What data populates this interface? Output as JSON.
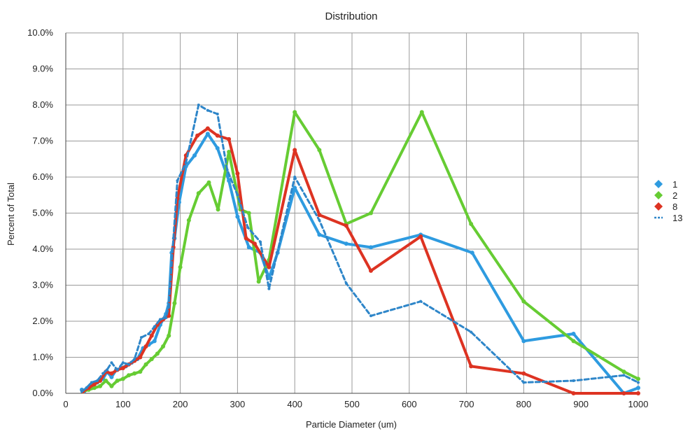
{
  "chart_data": {
    "type": "line",
    "title": "Distribution",
    "xlabel": "Particle Diameter (um)",
    "ylabel": "Percent of Total",
    "xlim": [
      0,
      1000
    ],
    "ylim": [
      0,
      10
    ],
    "x_ticks": [
      0,
      100,
      200,
      300,
      400,
      500,
      600,
      700,
      800,
      900,
      1000
    ],
    "y_ticks": [
      "0.0%",
      "1.0%",
      "2.0%",
      "3.0%",
      "4.0%",
      "5.0%",
      "6.0%",
      "7.0%",
      "8.0%",
      "9.0%",
      "10.0%"
    ],
    "y_tick_values": [
      0,
      1,
      2,
      3,
      4,
      5,
      6,
      7,
      8,
      9,
      10
    ],
    "grid": true,
    "legend_position": "right",
    "series": [
      {
        "name": "1",
        "color": "#2e9be0",
        "dash": false,
        "points": [
          [
            28,
            0.1
          ],
          [
            32,
            0.05
          ],
          [
            38,
            0.15
          ],
          [
            45,
            0.25
          ],
          [
            55,
            0.3
          ],
          [
            65,
            0.4
          ],
          [
            72,
            0.6
          ],
          [
            80,
            0.45
          ],
          [
            88,
            0.65
          ],
          [
            97,
            0.7
          ],
          [
            105,
            0.75
          ],
          [
            115,
            0.85
          ],
          [
            125,
            0.95
          ],
          [
            135,
            1.25
          ],
          [
            145,
            1.35
          ],
          [
            155,
            1.45
          ],
          [
            165,
            1.9
          ],
          [
            175,
            2.2
          ],
          [
            180,
            2.5
          ],
          [
            185,
            3.9
          ],
          [
            190,
            4.3
          ],
          [
            198,
            5.3
          ],
          [
            210,
            6.3
          ],
          [
            225,
            6.6
          ],
          [
            248,
            7.2
          ],
          [
            265,
            6.8
          ],
          [
            285,
            5.9
          ],
          [
            300,
            4.9
          ],
          [
            320,
            4.05
          ],
          [
            340,
            3.9
          ],
          [
            355,
            3.2
          ],
          [
            370,
            3.9
          ],
          [
            400,
            5.7
          ],
          [
            443,
            4.4
          ],
          [
            490,
            4.15
          ],
          [
            533,
            4.05
          ],
          [
            620,
            4.4
          ],
          [
            710,
            3.9
          ],
          [
            800,
            1.45
          ],
          [
            887,
            1.65
          ],
          [
            975,
            0.0
          ],
          [
            1000,
            0.15
          ]
        ]
      },
      {
        "name": "2",
        "color": "#66cc33",
        "dash": false,
        "points": [
          [
            30,
            0.05
          ],
          [
            40,
            0.1
          ],
          [
            50,
            0.15
          ],
          [
            60,
            0.2
          ],
          [
            70,
            0.35
          ],
          [
            80,
            0.2
          ],
          [
            90,
            0.35
          ],
          [
            100,
            0.4
          ],
          [
            110,
            0.5
          ],
          [
            120,
            0.55
          ],
          [
            130,
            0.6
          ],
          [
            140,
            0.8
          ],
          [
            150,
            0.95
          ],
          [
            160,
            1.1
          ],
          [
            170,
            1.3
          ],
          [
            180,
            1.6
          ],
          [
            190,
            2.5
          ],
          [
            200,
            3.5
          ],
          [
            215,
            4.8
          ],
          [
            232,
            5.55
          ],
          [
            250,
            5.85
          ],
          [
            266,
            5.1
          ],
          [
            285,
            6.7
          ],
          [
            305,
            5.1
          ],
          [
            320,
            5.0
          ],
          [
            337,
            3.1
          ],
          [
            355,
            3.7
          ],
          [
            400,
            7.8
          ],
          [
            443,
            6.75
          ],
          [
            490,
            4.7
          ],
          [
            533,
            5.0
          ],
          [
            622,
            7.8
          ],
          [
            708,
            4.7
          ],
          [
            800,
            2.55
          ],
          [
            887,
            1.45
          ],
          [
            975,
            0.6
          ],
          [
            1000,
            0.4
          ]
        ]
      },
      {
        "name": "8",
        "color": "#dd3322",
        "dash": false,
        "points": [
          [
            30,
            0.05
          ],
          [
            40,
            0.15
          ],
          [
            50,
            0.25
          ],
          [
            60,
            0.35
          ],
          [
            70,
            0.6
          ],
          [
            80,
            0.55
          ],
          [
            90,
            0.65
          ],
          [
            100,
            0.7
          ],
          [
            110,
            0.8
          ],
          [
            120,
            0.9
          ],
          [
            130,
            1.0
          ],
          [
            140,
            1.3
          ],
          [
            150,
            1.6
          ],
          [
            160,
            1.9
          ],
          [
            170,
            2.05
          ],
          [
            180,
            2.15
          ],
          [
            188,
            4.05
          ],
          [
            195,
            5.4
          ],
          [
            210,
            6.6
          ],
          [
            230,
            7.15
          ],
          [
            248,
            7.35
          ],
          [
            265,
            7.15
          ],
          [
            285,
            7.05
          ],
          [
            300,
            6.1
          ],
          [
            315,
            4.3
          ],
          [
            330,
            4.15
          ],
          [
            355,
            3.5
          ],
          [
            400,
            6.75
          ],
          [
            443,
            4.95
          ],
          [
            490,
            4.65
          ],
          [
            533,
            3.4
          ],
          [
            620,
            4.35
          ],
          [
            708,
            0.75
          ],
          [
            800,
            0.55
          ],
          [
            887,
            0.0
          ],
          [
            975,
            0.0
          ],
          [
            1000,
            0.0
          ]
        ]
      },
      {
        "name": "13",
        "color": "#2e86c9",
        "dash": true,
        "points": [
          [
            28,
            0.05
          ],
          [
            36,
            0.15
          ],
          [
            45,
            0.3
          ],
          [
            55,
            0.35
          ],
          [
            65,
            0.55
          ],
          [
            72,
            0.65
          ],
          [
            80,
            0.85
          ],
          [
            90,
            0.65
          ],
          [
            100,
            0.85
          ],
          [
            110,
            0.8
          ],
          [
            120,
            0.95
          ],
          [
            132,
            1.55
          ],
          [
            145,
            1.65
          ],
          [
            155,
            1.85
          ],
          [
            165,
            2.05
          ],
          [
            175,
            2.1
          ],
          [
            180,
            2.4
          ],
          [
            188,
            4.3
          ],
          [
            195,
            5.9
          ],
          [
            210,
            6.4
          ],
          [
            232,
            8.0
          ],
          [
            248,
            7.85
          ],
          [
            265,
            7.75
          ],
          [
            282,
            6.2
          ],
          [
            300,
            5.5
          ],
          [
            318,
            4.6
          ],
          [
            340,
            4.2
          ],
          [
            355,
            2.9
          ],
          [
            400,
            6.0
          ],
          [
            443,
            4.8
          ],
          [
            490,
            3.05
          ],
          [
            533,
            2.15
          ],
          [
            620,
            2.55
          ],
          [
            708,
            1.7
          ],
          [
            800,
            0.3
          ],
          [
            887,
            0.35
          ],
          [
            975,
            0.5
          ],
          [
            1000,
            0.3
          ]
        ]
      }
    ]
  }
}
